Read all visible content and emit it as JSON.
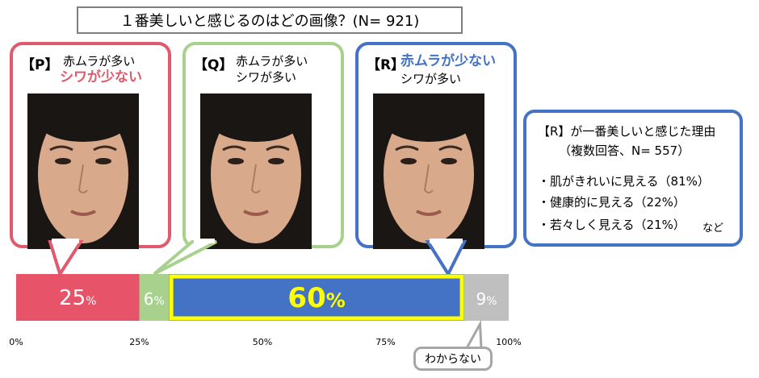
{
  "title": "１番美しいと感じるのはどの画像？(N= 921)",
  "options": [
    {
      "label": "【P】",
      "line1": "赤ムラが多い",
      "line2": "シワが少ない",
      "border": "#e05a6e",
      "line1_color": "#000000",
      "line2_color": "#e05a6e"
    },
    {
      "label": "【Q】",
      "line1": "赤ムラが多い",
      "line2": "シワが多い",
      "border": "#a9d18e",
      "line1_color": "#000000",
      "line2_color": "#000000"
    },
    {
      "label": "【R】",
      "line1": "赤ムラが少ない",
      "line2": "シワが多い",
      "border": "#4472c4",
      "line1_color": "#4472c4",
      "line2_color": "#000000"
    }
  ],
  "reasons": {
    "title": "【R】が一番美しいと感じた理由",
    "subtitle": "（複数回答、N= 557）",
    "items": [
      "・肌がきれいに見える（81%）",
      "・健康的に見える（22%）",
      "・若々しく見える（21%）"
    ],
    "etc": "など"
  },
  "unknown_label": "わからない",
  "chart_data": {
    "type": "bar",
    "orientation": "horizontal-stacked",
    "categories": [
      "P",
      "Q",
      "R",
      "わからない"
    ],
    "values": [
      25,
      6,
      60,
      9
    ],
    "value_labels": [
      "25",
      "6",
      "60",
      "9"
    ],
    "unit": "%",
    "colors": [
      "#e7546a",
      "#a9d18e",
      "#4472c4",
      "#bfbfbf"
    ],
    "highlight": {
      "category": "R",
      "outline": "#ffff00",
      "label_color": "#ffff00"
    },
    "xlim": [
      0,
      100
    ],
    "ticks": [
      "0%",
      "25%",
      "50%",
      "75%",
      "100%"
    ]
  }
}
